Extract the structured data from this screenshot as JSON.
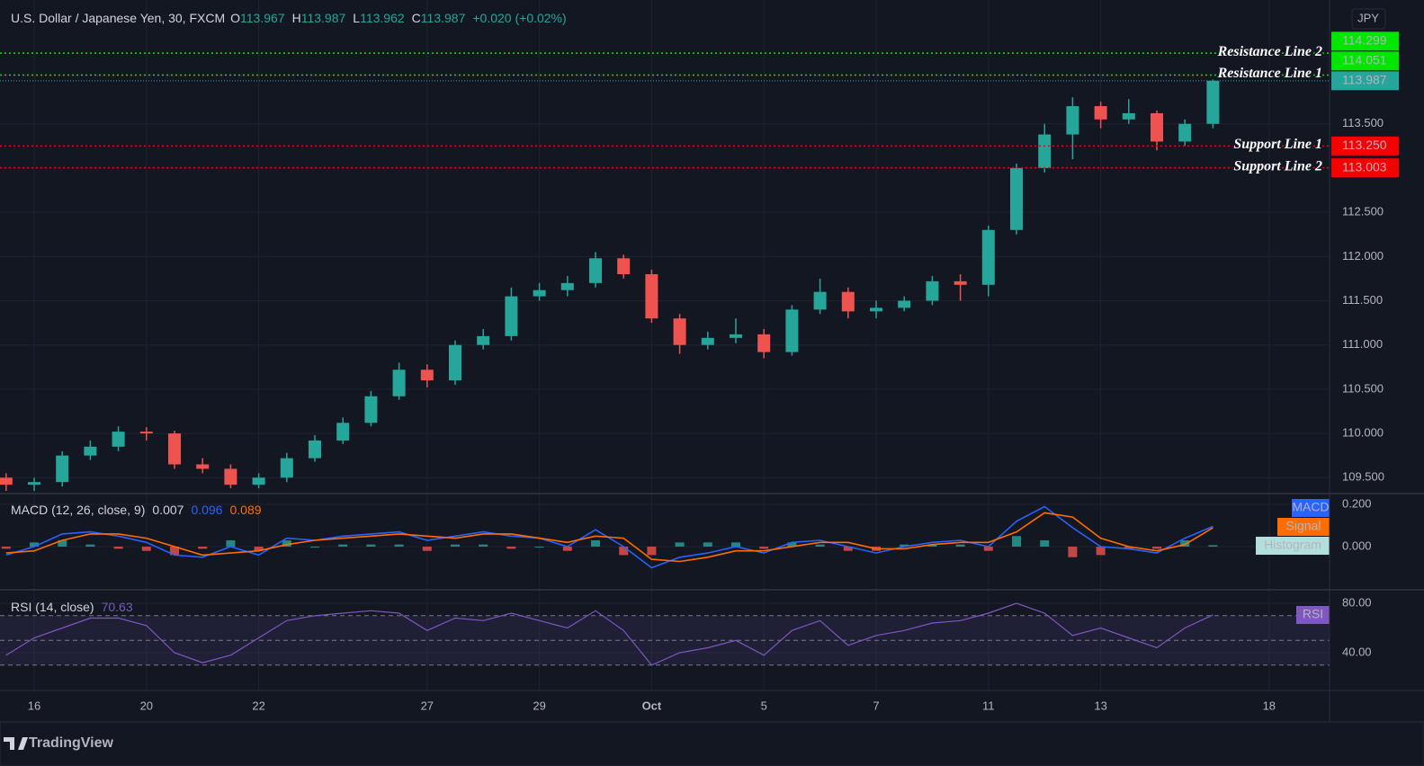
{
  "chart_data": [
    {
      "type": "candlestick",
      "header": {
        "symbol": "U.S. Dollar / Japanese Yen, 30, FXCM",
        "ohlc": [
          {
            "letter": "O",
            "value": 113.967
          },
          {
            "letter": "H",
            "value": 113.987
          },
          {
            "letter": "L",
            "value": 113.962
          },
          {
            "letter": "C",
            "value": 113.987
          }
        ],
        "change": "+0.020 (+0.02%)"
      },
      "currency": "JPY",
      "categories": [
        null,
        "16",
        null,
        null,
        null,
        "20",
        null,
        null,
        null,
        "22",
        null,
        null,
        null,
        null,
        null,
        "27",
        null,
        null,
        null,
        "29",
        null,
        null,
        null,
        "Oct",
        null,
        null,
        null,
        "5",
        null,
        null,
        null,
        "7",
        null,
        null,
        null,
        "11",
        null,
        null,
        null,
        "13",
        null,
        null,
        null,
        null,
        null,
        "18"
      ],
      "open": [
        109.5,
        109.42,
        109.45,
        109.75,
        109.85,
        110.02,
        110.0,
        109.65,
        109.6,
        109.42,
        109.5,
        109.72,
        109.92,
        110.12,
        110.42,
        110.72,
        110.6,
        111.0,
        111.1,
        111.55,
        111.62,
        111.7,
        111.98,
        111.8,
        111.3,
        111.0,
        111.08,
        111.12,
        110.92,
        111.4,
        111.6,
        111.38,
        111.42,
        111.5,
        111.72,
        111.68,
        112.3,
        113.0,
        113.38,
        113.7,
        113.55,
        113.62,
        113.3,
        113.5,
        null,
        null
      ],
      "high": [
        109.55,
        109.5,
        109.8,
        109.92,
        110.08,
        110.07,
        110.03,
        109.72,
        109.65,
        109.55,
        109.78,
        109.98,
        110.18,
        110.48,
        110.8,
        110.78,
        111.05,
        111.18,
        111.65,
        111.7,
        111.78,
        112.05,
        112.02,
        111.85,
        111.35,
        111.15,
        111.3,
        111.18,
        111.45,
        111.75,
        111.65,
        111.5,
        111.55,
        111.78,
        111.8,
        112.35,
        113.05,
        113.5,
        113.8,
        113.75,
        113.78,
        113.65,
        113.55,
        114.0,
        null,
        null
      ],
      "low": [
        109.35,
        109.35,
        109.4,
        109.7,
        109.8,
        109.92,
        109.6,
        109.55,
        109.38,
        109.38,
        109.45,
        109.68,
        109.88,
        110.08,
        110.38,
        110.52,
        110.55,
        110.95,
        111.05,
        111.5,
        111.55,
        111.65,
        111.75,
        111.25,
        110.9,
        110.95,
        111.02,
        110.85,
        110.88,
        111.35,
        111.3,
        111.3,
        111.38,
        111.45,
        111.5,
        111.55,
        112.25,
        112.95,
        113.1,
        113.45,
        113.5,
        113.2,
        113.25,
        113.45,
        null,
        null
      ],
      "close": [
        109.42,
        109.45,
        109.75,
        109.85,
        110.02,
        110.0,
        109.65,
        109.6,
        109.42,
        109.5,
        109.72,
        109.92,
        110.12,
        110.42,
        110.72,
        110.6,
        111.0,
        111.1,
        111.55,
        111.62,
        111.7,
        111.98,
        111.8,
        111.3,
        111.0,
        111.08,
        111.12,
        110.92,
        111.4,
        111.6,
        111.38,
        111.42,
        111.5,
        111.72,
        111.68,
        112.3,
        113.0,
        113.38,
        113.7,
        113.55,
        113.62,
        113.3,
        113.5,
        113.987,
        null,
        null
      ],
      "up_color": "#26a69a",
      "down_color": "#ef5350",
      "ylim": [
        109.33,
        114.9
      ],
      "yticks": [
        {
          "value": 109.5,
          "label": "109.500"
        },
        {
          "value": 110,
          "label": "110.000"
        },
        {
          "value": 110.5,
          "label": "110.500"
        },
        {
          "value": 111,
          "label": "111.000"
        },
        {
          "value": 111.5,
          "label": "111.500"
        },
        {
          "value": 112,
          "label": "112.000"
        },
        {
          "value": 112.5,
          "label": "112.500"
        },
        {
          "value": 113,
          "label": "113.000"
        },
        {
          "value": 113.5,
          "label": "113.500"
        }
      ],
      "grid": true,
      "last_price_color": "#26a69a",
      "levels": [
        {
          "name": "Resistance Line 2",
          "value": 114.299,
          "price_label": "114.299",
          "color": "#00e600",
          "label_text_color": "#131722"
        },
        {
          "name": "Resistance Line 1",
          "value": 114.051,
          "price_label": "114.051",
          "color": "#00e600",
          "label_text_color": "#131722"
        },
        {
          "name": "Support Line 1",
          "value": 113.25,
          "price_label": "113.250",
          "color": "#f70000",
          "label_text_color": "#ffffff"
        },
        {
          "name": "Support Line 2",
          "value": 113.003,
          "price_label": "113.003",
          "color": "#f70000",
          "label_text_color": "#ffffff"
        }
      ]
    },
    {
      "type": "macd",
      "title": "MACD (12, 26, close, 9)",
      "series": [
        {
          "name": "Histogram",
          "color": "#26a69a",
          "negative_color": "#ef5350",
          "tag_color": "#b2dfdb",
          "values": [
            -0.01,
            0.02,
            0.03,
            0.01,
            -0.01,
            -0.02,
            -0.04,
            -0.01,
            0.03,
            -0.02,
            0.03,
            0,
            0.01,
            0.01,
            0.01,
            -0.02,
            0.01,
            0.01,
            -0.01,
            0,
            -0.02,
            0.03,
            -0.04,
            -0.04,
            0.02,
            0.02,
            0.02,
            -0.01,
            0.02,
            0.01,
            -0.02,
            -0.02,
            0.01,
            0.01,
            0.01,
            -0.02,
            0.05,
            0.03,
            -0.05,
            -0.04,
            -0.01,
            -0.01,
            0.03,
            0.007,
            null,
            null
          ]
        },
        {
          "name": "MACD",
          "color": "#2962ff",
          "values": [
            -0.04,
            0,
            0.06,
            0.07,
            0.05,
            0.02,
            -0.04,
            -0.05,
            0,
            -0.04,
            0.04,
            0.03,
            0.05,
            0.06,
            0.07,
            0.03,
            0.05,
            0.07,
            0.05,
            0.04,
            0,
            0.08,
            0,
            -0.1,
            -0.05,
            -0.03,
            0,
            -0.03,
            0.02,
            0.03,
            0,
            -0.03,
            0,
            0.02,
            0.03,
            0,
            0.12,
            0.19,
            0.09,
            0,
            -0.01,
            -0.03,
            0.04,
            0.096,
            null,
            null
          ]
        },
        {
          "name": "Signal",
          "color": "#ff6d00",
          "values": [
            -0.03,
            -0.02,
            0.03,
            0.06,
            0.06,
            0.04,
            0,
            -0.04,
            -0.03,
            -0.02,
            0.01,
            0.03,
            0.04,
            0.05,
            0.06,
            0.05,
            0.04,
            0.06,
            0.06,
            0.04,
            0.02,
            0.05,
            0.04,
            -0.06,
            -0.07,
            -0.05,
            -0.02,
            -0.02,
            0,
            0.02,
            0.02,
            -0.01,
            -0.01,
            0.01,
            0.02,
            0.02,
            0.07,
            0.16,
            0.14,
            0.04,
            0,
            -0.02,
            0.01,
            0.089,
            null,
            null
          ]
        }
      ],
      "ylim": [
        -0.2,
        0.247
      ],
      "yticks": [
        {
          "value": 0.2,
          "label": "0.200"
        },
        {
          "value": 0,
          "label": "0.000"
        }
      ]
    },
    {
      "type": "line",
      "title": "RSI (14, close)",
      "series": [
        {
          "name": "RSI",
          "color": "#7e57c2",
          "values": [
            38,
            52,
            60,
            68,
            68,
            62,
            40,
            32,
            38,
            52,
            66,
            70,
            72,
            74,
            72,
            58,
            68,
            66,
            72,
            66,
            60,
            74,
            58,
            30,
            40,
            44,
            50,
            38,
            58,
            66,
            46,
            54,
            58,
            64,
            66,
            72,
            80,
            72,
            54,
            60,
            52,
            44,
            60,
            70.63,
            null,
            null
          ]
        }
      ],
      "bands": [
        70,
        50,
        30
      ],
      "ylim": [
        9.5,
        90.2
      ],
      "yticks": [
        {
          "value": 80,
          "label": "80.00"
        },
        {
          "value": 40,
          "label": "40.00"
        }
      ]
    }
  ],
  "footer": {
    "brand": "TradingView"
  }
}
